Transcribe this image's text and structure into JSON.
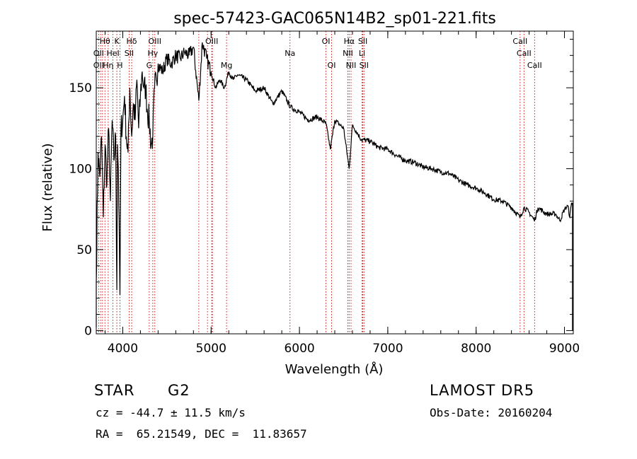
{
  "chart_data": {
    "type": "line",
    "title": "spec-57423-GAC065N14B2_sp01-221.fits",
    "xlabel": "Wavelength (Å)",
    "ylabel": "Flux (relative)",
    "xlim": [
      3700,
      9100
    ],
    "ylim": [
      -2,
      185
    ],
    "x_ticks": [
      4000,
      5000,
      6000,
      7000,
      8000,
      9000
    ],
    "y_ticks": [
      0,
      50,
      100,
      150
    ],
    "grid": false,
    "line_color": "#000000",
    "marker_color": "#cc0000",
    "series": [
      {
        "x": [
          3700,
          3720,
          3740,
          3760,
          3780,
          3800,
          3820,
          3840,
          3860,
          3880,
          3900,
          3920,
          3933,
          3940,
          3950,
          3968,
          3980,
          4000,
          4020,
          4040,
          4060,
          4080,
          4101,
          4120,
          4140,
          4160,
          4180,
          4200,
          4220,
          4240,
          4260,
          4280,
          4300,
          4320,
          4340,
          4360,
          4380,
          4400,
          4450,
          4500,
          4550,
          4600,
          4650,
          4700,
          4750,
          4800,
          4861,
          4900,
          4950,
          5000,
          5050,
          5100,
          5150,
          5200,
          5250,
          5300,
          5400,
          5500,
          5600,
          5700,
          5800,
          5900,
          6000,
          6100,
          6200,
          6300,
          6350,
          6400,
          6500,
          6563,
          6600,
          6700,
          6800,
          6900,
          7000,
          7100,
          7200,
          7300,
          7400,
          7500,
          7600,
          7700,
          7800,
          7900,
          8000,
          8100,
          8200,
          8300,
          8400,
          8498,
          8542,
          8600,
          8662,
          8700,
          8800,
          8900,
          8950,
          9000,
          9040,
          9060,
          9080,
          9090
        ],
        "y": [
          30,
          110,
          95,
          120,
          70,
          115,
          90,
          125,
          80,
          130,
          105,
          120,
          25,
          115,
          100,
          22,
          125,
          130,
          145,
          120,
          110,
          150,
          120,
          140,
          130,
          155,
          125,
          145,
          160,
          150,
          150,
          135,
          130,
          115,
          120,
          150,
          155,
          165,
          160,
          168,
          165,
          170,
          168,
          172,
          170,
          175,
          142,
          178,
          168,
          160,
          150,
          155,
          150,
          160,
          155,
          158,
          155,
          148,
          150,
          140,
          148,
          138,
          135,
          130,
          132,
          128,
          112,
          130,
          125,
          100,
          127,
          118,
          117,
          113,
          112,
          108,
          105,
          104,
          101,
          100,
          98,
          97,
          93,
          90,
          88,
          85,
          81,
          80,
          76,
          70,
          76,
          73,
          68,
          76,
          72,
          72,
          68,
          75,
          77,
          70,
          79,
          79
        ]
      }
    ],
    "lines": [
      {
        "name": "Hθ",
        "x": 3798,
        "row": 1
      },
      {
        "name": "OII",
        "x": 3727,
        "row": 2
      },
      {
        "name": "OII",
        "x": 3727,
        "row": 3
      },
      {
        "name": "Hη",
        "x": 3835,
        "row": 3
      },
      {
        "name": "K",
        "x": 3933,
        "row": 1
      },
      {
        "name": "HeI",
        "x": 3889,
        "row": 2
      },
      {
        "name": "H",
        "x": 3968,
        "row": 3
      },
      {
        "name": "Hδ",
        "x": 4101,
        "row": 1
      },
      {
        "name": "SII",
        "x": 4072,
        "row": 2
      },
      {
        "name": "OIII",
        "x": 4363,
        "row": 1
      },
      {
        "name": "Hγ",
        "x": 4340,
        "row": 2
      },
      {
        "name": "G",
        "x": 4300,
        "row": 3
      },
      {
        "name": "OIII",
        "x": 5007,
        "row": 1
      },
      {
        "name": "Mg",
        "x": 5175,
        "row": 3
      },
      {
        "name": "Na",
        "x": 5893,
        "row": 2
      },
      {
        "name": "OI",
        "x": 6300,
        "row": 1
      },
      {
        "name": "OI",
        "x": 6364,
        "row": 3
      },
      {
        "name": "Hα",
        "x": 6563,
        "row": 1
      },
      {
        "name": "NII",
        "x": 6548,
        "row": 2
      },
      {
        "name": "NII",
        "x": 6584,
        "row": 3
      },
      {
        "name": "SII",
        "x": 6717,
        "row": 1
      },
      {
        "name": "Li",
        "x": 6708,
        "row": 2
      },
      {
        "name": "SII",
        "x": 6731,
        "row": 3
      },
      {
        "name": "CaII",
        "x": 8498,
        "row": 1
      },
      {
        "name": "CaII",
        "x": 8542,
        "row": 2
      },
      {
        "name": "CaII",
        "x": 8662,
        "row": 3
      }
    ],
    "extra_marker_x": [
      3750,
      3771,
      3889,
      4861,
      4959,
      5015
    ]
  },
  "info": {
    "object_type": "STAR",
    "subclass": "G2",
    "survey": "LAMOST DR5",
    "redshift": "cz = -44.7 ± 11.5 km/s",
    "obs_date": "Obs-Date: 20160204",
    "coords": "RA =  65.21549, DEC =  11.83657"
  }
}
